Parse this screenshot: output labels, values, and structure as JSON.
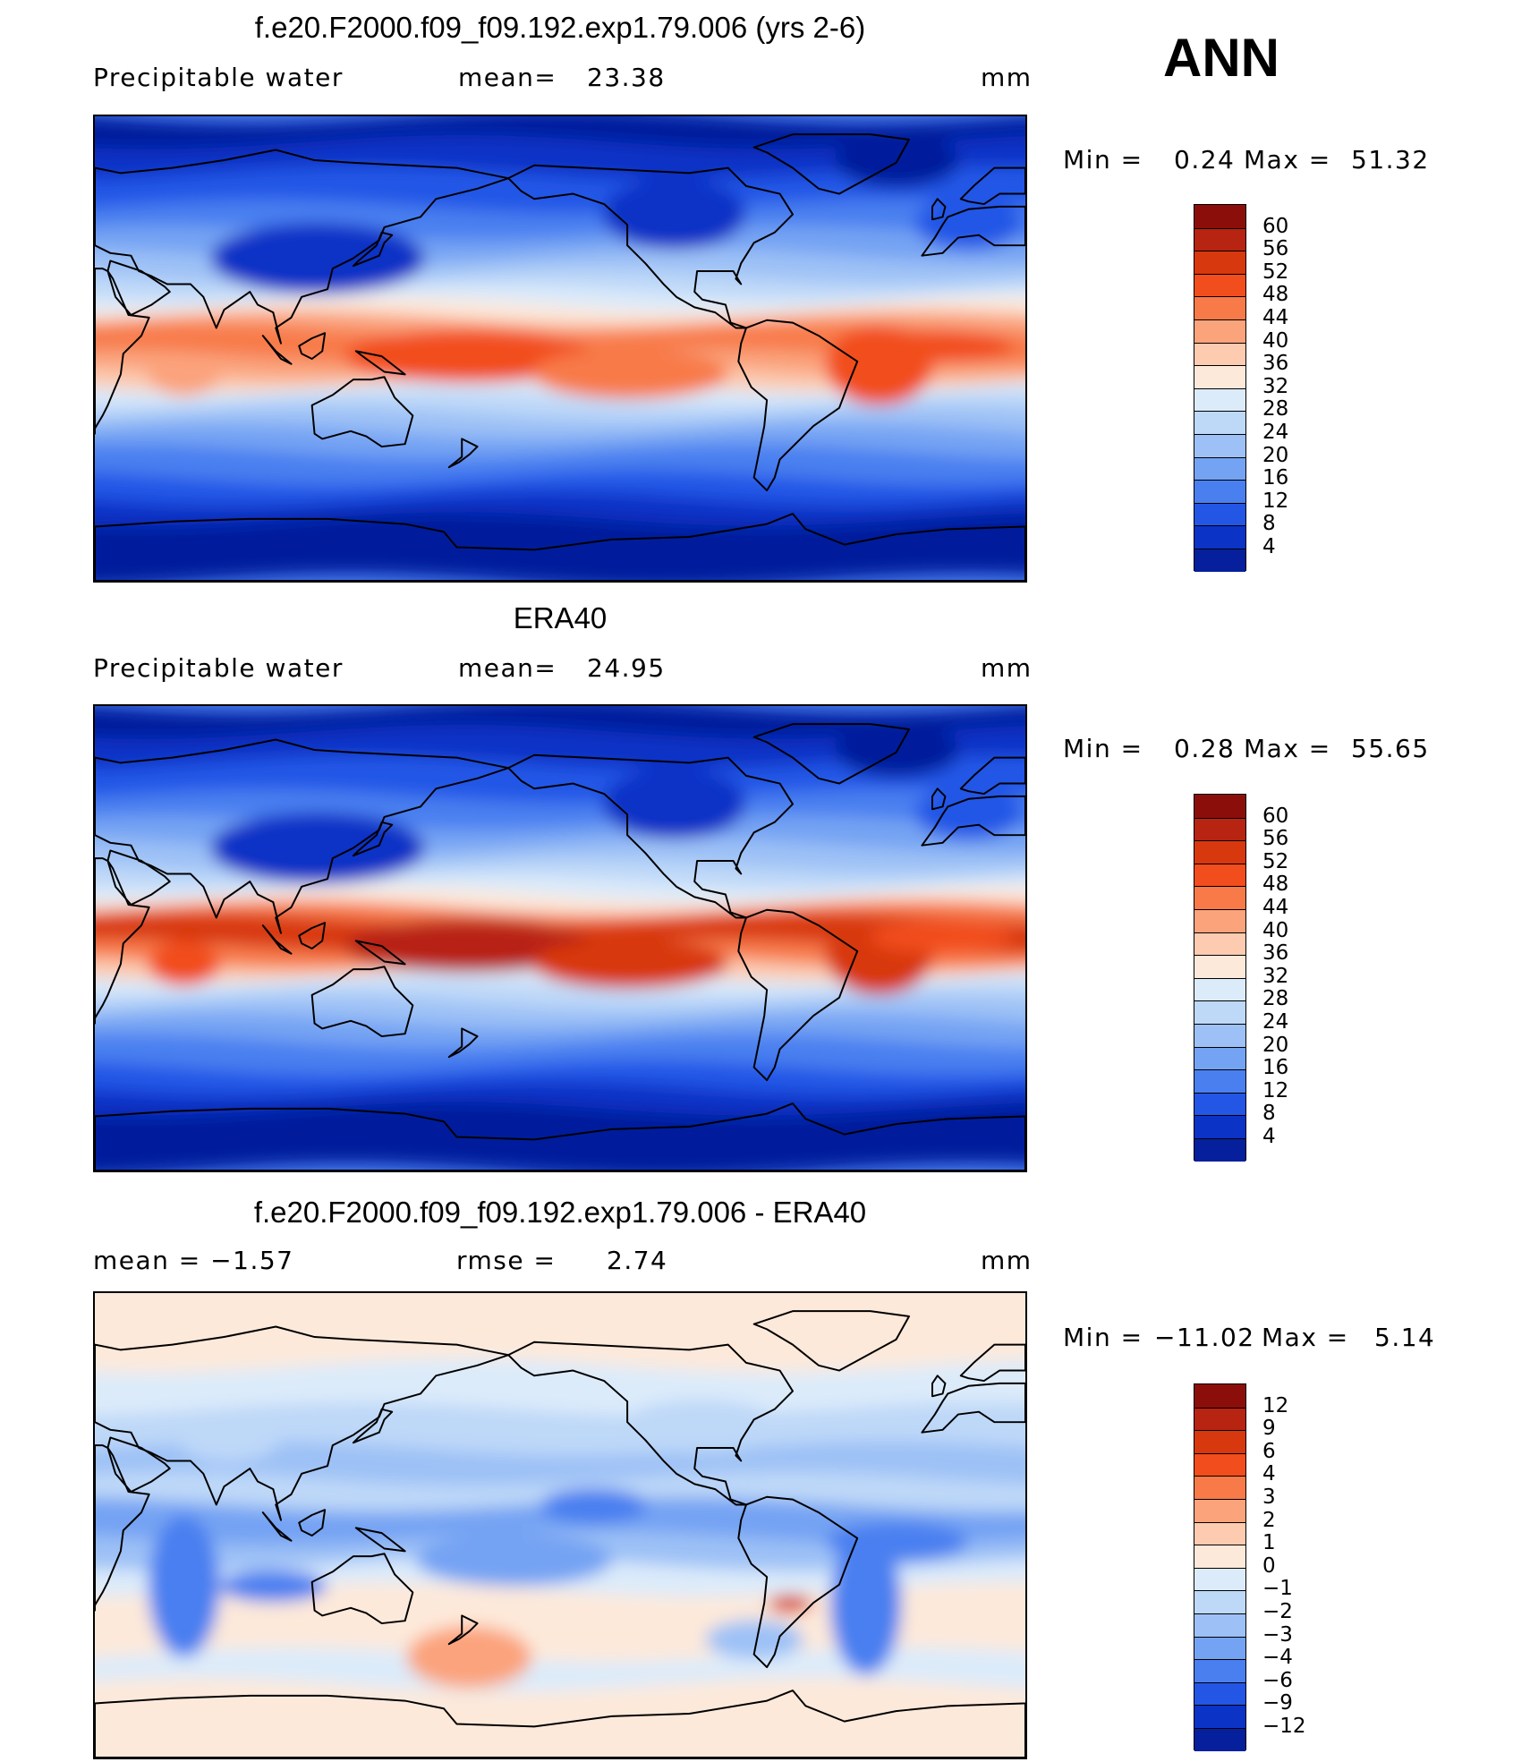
{
  "season": "ANN",
  "panels": [
    {
      "id": "model",
      "title": "f.e20.F2000.f09_f09.192.exp1.79.006 (yrs 2-6)",
      "variable": "Precipitable water",
      "stat_left": "",
      "stat_mid_label": "mean=",
      "stat_mid_value": "23.38",
      "units": "mm",
      "min_label": "Min  =",
      "min_value": "0.24",
      "max_label": "Max  =",
      "max_value": "51.32",
      "levels": [
        "60",
        "56",
        "52",
        "48",
        "44",
        "40",
        "36",
        "32",
        "28",
        "24",
        "20",
        "16",
        "12",
        "8",
        "4"
      ],
      "colors": [
        "#8c0e0a",
        "#b82412",
        "#d8380e",
        "#f24d1c",
        "#f87a48",
        "#fba37b",
        "#fdcbb0",
        "#fde9da",
        "#dcebfa",
        "#bed8f8",
        "#9dc1f6",
        "#75a3f3",
        "#4a7ff0",
        "#2456e6",
        "#0b33c6",
        "#061f9c"
      ]
    },
    {
      "id": "obs",
      "title": "ERA40",
      "variable": "Precipitable water",
      "stat_left": "",
      "stat_mid_label": "mean=",
      "stat_mid_value": "24.95",
      "units": "mm",
      "min_label": "Min  =",
      "min_value": "0.28",
      "max_label": "Max  =",
      "max_value": "55.65",
      "levels": [
        "60",
        "56",
        "52",
        "48",
        "44",
        "40",
        "36",
        "32",
        "28",
        "24",
        "20",
        "16",
        "12",
        "8",
        "4"
      ],
      "colors": [
        "#8c0e0a",
        "#b82412",
        "#d8380e",
        "#f24d1c",
        "#f87a48",
        "#fba37b",
        "#fdcbb0",
        "#fde9da",
        "#dcebfa",
        "#bed8f8",
        "#9dc1f6",
        "#75a3f3",
        "#4a7ff0",
        "#2456e6",
        "#0b33c6",
        "#061f9c"
      ]
    },
    {
      "id": "diff",
      "title": "f.e20.F2000.f09_f09.192.exp1.79.006 - ERA40",
      "variable": "",
      "stat_left": "mean  =    −1.57",
      "stat_mid_label": "rmse  =",
      "stat_mid_value": "2.74",
      "units": "mm",
      "min_label": "Min  =",
      "min_value": "−11.02",
      "max_label": "Max  =",
      "max_value": "5.14",
      "levels": [
        "12",
        "9",
        "6",
        "4",
        "3",
        "2",
        "1",
        "0",
        "−1",
        "−2",
        "−3",
        "−4",
        "−6",
        "−9",
        "−12"
      ],
      "colors": [
        "#8c0e0a",
        "#b82412",
        "#d8380e",
        "#f24d1c",
        "#f87a48",
        "#fba37b",
        "#fdcbb0",
        "#fde9da",
        "#dcebfa",
        "#bed8f8",
        "#9dc1f6",
        "#75a3f3",
        "#4a7ff0",
        "#2456e6",
        "#0b33c6",
        "#061f9c"
      ]
    }
  ]
}
